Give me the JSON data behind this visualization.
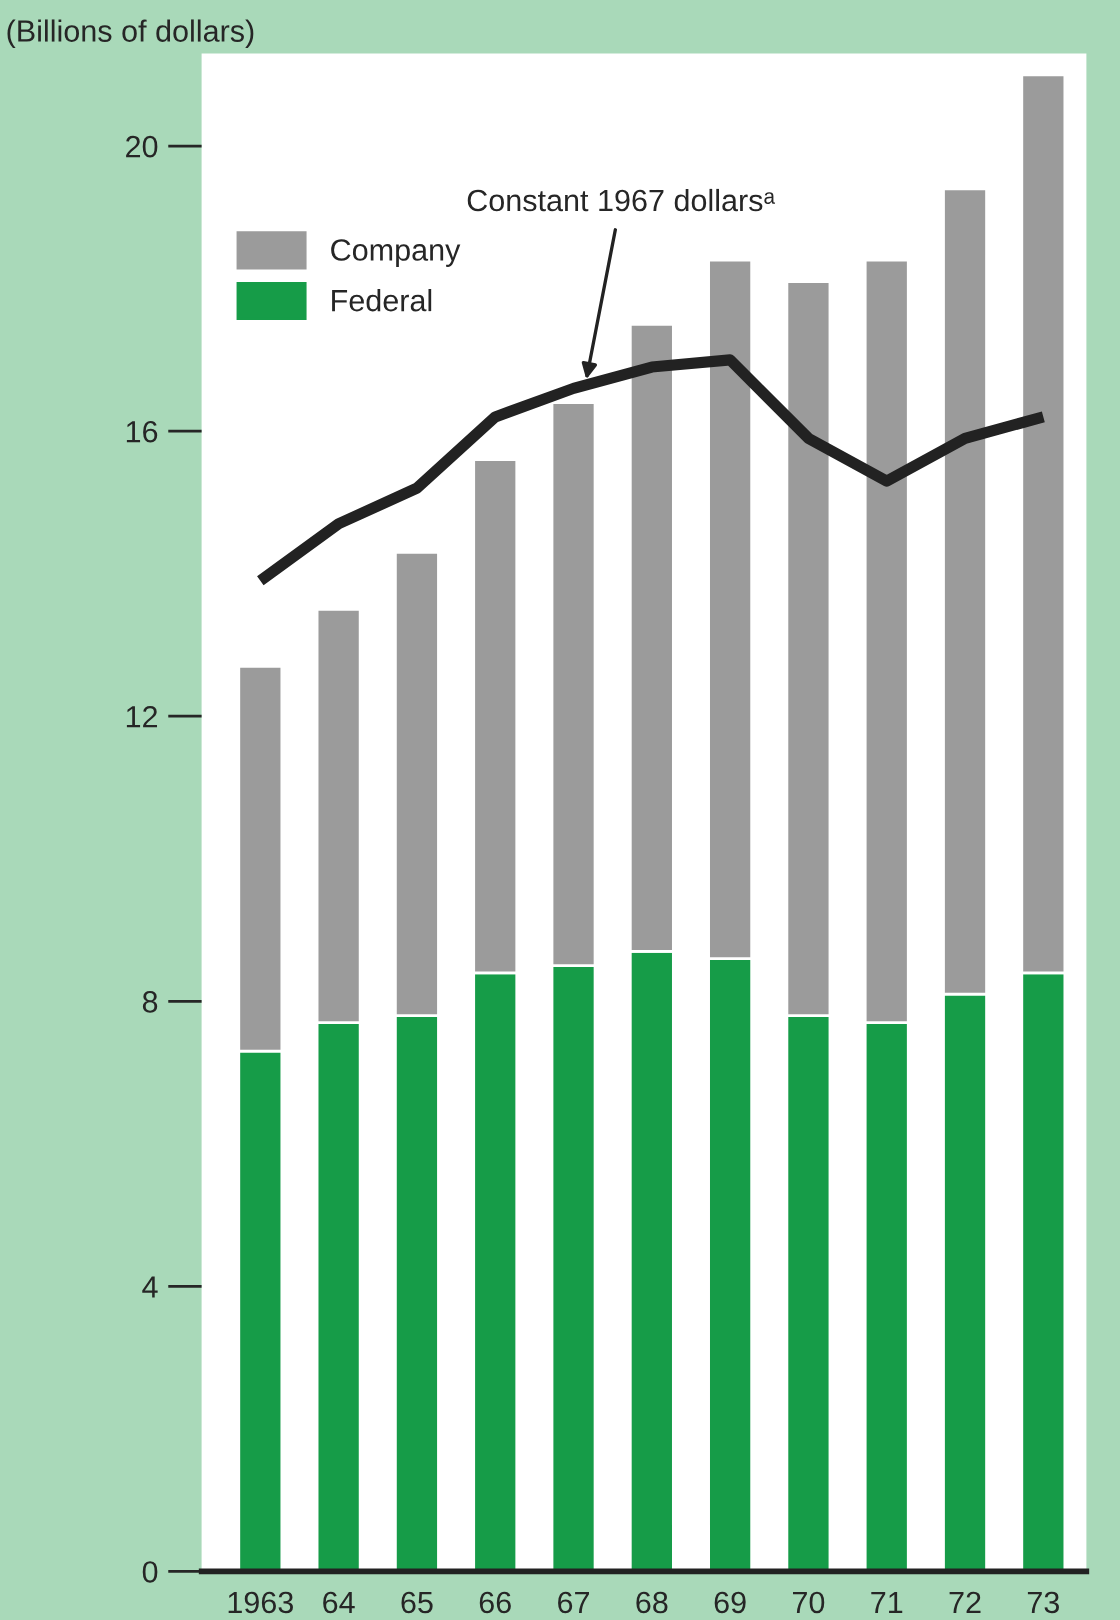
{
  "chart_data": {
    "type": "bar",
    "stacked": true,
    "ylabel": "(Billions of dollars)",
    "categories": [
      "1963",
      "64",
      "65",
      "66",
      "67",
      "68",
      "69",
      "70",
      "71",
      "72",
      "73"
    ],
    "series": [
      {
        "name": "Federal",
        "color": "#169c48",
        "values": [
          7.3,
          7.7,
          7.8,
          8.4,
          8.5,
          8.7,
          8.6,
          7.8,
          7.7,
          8.1,
          8.4
        ]
      },
      {
        "name": "Company",
        "color": "#9b9b9b",
        "values": [
          5.4,
          5.8,
          6.5,
          7.2,
          7.9,
          8.8,
          9.8,
          10.3,
          10.7,
          11.3,
          12.6
        ]
      },
      {
        "name": "Constant 1967 dollarsᵃ",
        "type": "line",
        "color": "#222222",
        "values": [
          13.9,
          14.7,
          15.2,
          16.2,
          16.6,
          16.9,
          17.0,
          15.9,
          15.3,
          15.9,
          16.2
        ]
      }
    ],
    "ylim": [
      0,
      21.3
    ],
    "yticks": [
      0,
      4,
      8,
      12,
      16,
      20
    ],
    "grid": false,
    "legend": "top left"
  }
}
